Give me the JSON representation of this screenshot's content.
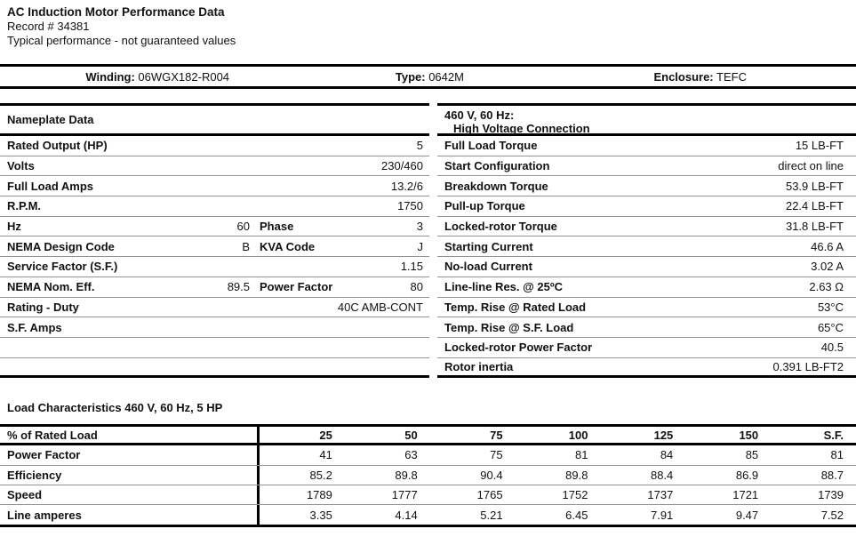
{
  "colors": {
    "rule_thick": "#000000",
    "rule_thin": "#939393",
    "text": "#111111",
    "background": "#ffffff"
  },
  "header": {
    "title": "AC Induction Motor Performance Data",
    "record": "Record # 34381",
    "note": "Typical performance - not guaranteed values"
  },
  "info_bar": {
    "winding_label": "Winding:",
    "winding_value": "06WGX182-R004",
    "type_label": "Type:",
    "type_value": "0642M",
    "enclosure_label": "Enclosure:",
    "enclosure_value": "TEFC"
  },
  "nameplate": {
    "title": "Nameplate Data",
    "rows": [
      {
        "label": "Rated Output (HP)",
        "value": "5"
      },
      {
        "label": "Volts",
        "value": "230/460"
      },
      {
        "label": "Full Load Amps",
        "value": "13.2/6"
      },
      {
        "label": "R.P.M.",
        "value": "1750"
      },
      {
        "label": "Hz",
        "value": "60",
        "label2": "Phase",
        "value2": "3"
      },
      {
        "label": "NEMA Design Code",
        "value": "B",
        "label2": "KVA Code",
        "value2": "J"
      },
      {
        "label": "Service Factor (S.F.)",
        "value": "1.15"
      },
      {
        "label": "NEMA Nom. Eff.",
        "value": "89.5",
        "label2": "Power Factor",
        "value2": "80"
      },
      {
        "label": "Rating - Duty",
        "value": "40C AMB-CONT"
      },
      {
        "label": "S.F. Amps",
        "value": ""
      },
      {
        "label": "",
        "value": ""
      },
      {
        "label": "",
        "value": ""
      }
    ]
  },
  "hv_connection": {
    "title_line1": "460 V, 60 Hz:",
    "title_line2": "High Voltage Connection",
    "rows": [
      {
        "label": "Full Load Torque",
        "value": "15 LB-FT"
      },
      {
        "label": "Start Configuration",
        "value": "direct on line"
      },
      {
        "label": "Breakdown Torque",
        "value": "53.9 LB-FT"
      },
      {
        "label": "Pull-up Torque",
        "value": "22.4 LB-FT"
      },
      {
        "label": "Locked-rotor Torque",
        "value": "31.8 LB-FT"
      },
      {
        "label": "Starting Current",
        "value": "46.6 A"
      },
      {
        "label": "No-load Current",
        "value": "3.02 A"
      },
      {
        "label": "Line-line Res. @ 25ºC",
        "value": "2.63 Ω"
      },
      {
        "label": "Temp. Rise @ Rated Load",
        "value": "53°C"
      },
      {
        "label": "Temp. Rise @ S.F. Load",
        "value": "65°C"
      },
      {
        "label": "Locked-rotor Power Factor",
        "value": "40.5"
      },
      {
        "label": "Rotor inertia",
        "value": "0.391 LB-FT2"
      }
    ]
  },
  "load_characteristics": {
    "title": "Load Characteristics 460 V, 60 Hz, 5 HP",
    "header": [
      "% of Rated Load",
      "25",
      "50",
      "75",
      "100",
      "125",
      "150",
      "S.F."
    ],
    "rows": [
      {
        "label": "Power Factor",
        "values": [
          "41",
          "63",
          "75",
          "81",
          "84",
          "85",
          "81"
        ]
      },
      {
        "label": "Efficiency",
        "values": [
          "85.2",
          "89.8",
          "90.4",
          "89.8",
          "88.4",
          "86.9",
          "88.7"
        ]
      },
      {
        "label": "Speed",
        "values": [
          "1789",
          "1777",
          "1765",
          "1752",
          "1737",
          "1721",
          "1739"
        ]
      },
      {
        "label": "Line amperes",
        "values": [
          "3.35",
          "4.14",
          "5.21",
          "6.45",
          "7.91",
          "9.47",
          "7.52"
        ]
      }
    ]
  }
}
